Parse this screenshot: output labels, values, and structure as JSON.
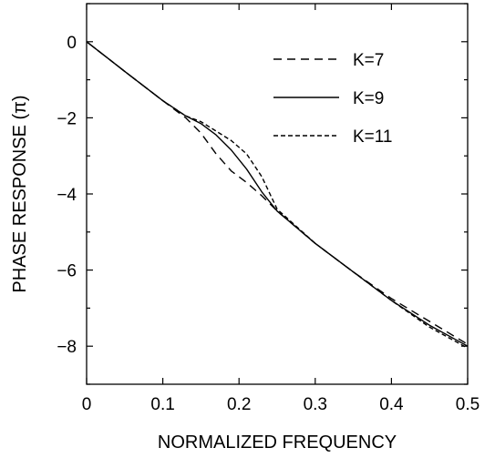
{
  "chart_data": {
    "type": "line",
    "xlabel": "NORMALIZED FREQUENCY",
    "ylabel": "PHASE RESPONSE (π)",
    "xlim": [
      0,
      0.5
    ],
    "ylim": [
      -9,
      1
    ],
    "xticks": [
      0,
      0.1,
      0.2,
      0.3,
      0.4,
      0.5
    ],
    "xtick_labels": [
      "0",
      "0.1",
      "0.2",
      "0.3",
      "0.4",
      "0.5"
    ],
    "yticks": [
      0,
      -2,
      -4,
      -6,
      -8
    ],
    "ytick_labels": [
      "0",
      "−2",
      "−4",
      "−6",
      "−8"
    ],
    "grid": false,
    "legend_position": "top-right",
    "series": [
      {
        "name": "K=7",
        "line_style": "dashed",
        "x": [
          0,
          0.05,
          0.1,
          0.13,
          0.15,
          0.17,
          0.19,
          0.21,
          0.23,
          0.25,
          0.3,
          0.35,
          0.4,
          0.45,
          0.5
        ],
        "y": [
          0,
          -0.78,
          -1.55,
          -2.0,
          -2.4,
          -2.95,
          -3.4,
          -3.7,
          -4.05,
          -4.45,
          -5.3,
          -6.05,
          -6.75,
          -7.35,
          -7.95
        ]
      },
      {
        "name": "K=9",
        "line_style": "solid",
        "x": [
          0,
          0.05,
          0.1,
          0.13,
          0.15,
          0.17,
          0.19,
          0.21,
          0.23,
          0.25,
          0.3,
          0.35,
          0.4,
          0.45,
          0.5
        ],
        "y": [
          0,
          -0.78,
          -1.55,
          -1.95,
          -2.15,
          -2.45,
          -2.85,
          -3.35,
          -3.95,
          -4.45,
          -5.3,
          -6.05,
          -6.8,
          -7.45,
          -8.0
        ]
      },
      {
        "name": "K=11",
        "line_style": "dotted-dash",
        "x": [
          0,
          0.05,
          0.1,
          0.13,
          0.15,
          0.17,
          0.19,
          0.21,
          0.23,
          0.25,
          0.3,
          0.35,
          0.4,
          0.45,
          0.5
        ],
        "y": [
          0,
          -0.78,
          -1.55,
          -1.95,
          -2.1,
          -2.35,
          -2.6,
          -2.95,
          -3.55,
          -4.4,
          -5.3,
          -6.05,
          -6.8,
          -7.5,
          -8.05
        ]
      }
    ]
  }
}
